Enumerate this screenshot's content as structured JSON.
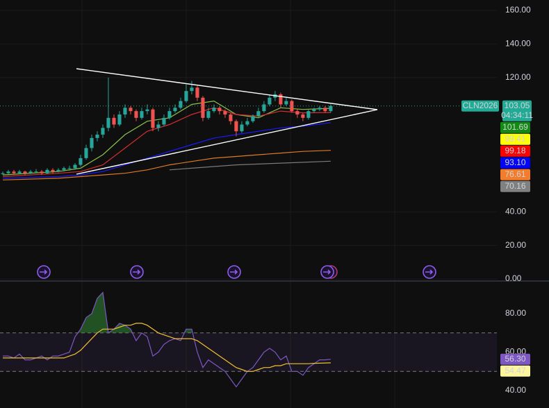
{
  "chart_data": [
    {
      "type": "candlestick",
      "symbol": "CLN2026",
      "countdown": "04:34:11",
      "last_price": 103.05,
      "last_price_color": "#22ab94",
      "up_color": "#26a69a",
      "down_color": "#ef5350",
      "xlim": [
        -0.5,
        88.9
      ],
      "ylim": [
        -0.8,
        166.2
      ],
      "yticks": [
        {
          "value": 160,
          "label": "160.00"
        },
        {
          "value": 140,
          "label": "140.00"
        },
        {
          "value": 120,
          "label": "120.00"
        },
        {
          "value": 40,
          "label": "40.00"
        },
        {
          "value": 20,
          "label": "20.00"
        },
        {
          "value": 0,
          "label": "0.00"
        }
      ],
      "grid": true,
      "ohlc": [
        [
          62.5,
          64,
          62,
          63
        ],
        [
          63,
          65,
          62.5,
          64
        ],
        [
          64,
          65,
          62,
          63
        ],
        [
          63,
          65,
          62.5,
          64
        ],
        [
          64,
          64.5,
          62,
          63
        ],
        [
          63,
          65,
          62.5,
          64
        ],
        [
          64,
          65.5,
          63,
          64
        ],
        [
          64,
          65,
          62,
          63
        ],
        [
          63,
          66,
          62.5,
          65
        ],
        [
          65,
          66,
          63,
          64
        ],
        [
          64,
          66,
          63.5,
          65
        ],
        [
          65,
          67,
          64,
          66
        ],
        [
          66,
          67.5,
          64.5,
          66
        ],
        [
          66,
          69,
          65,
          68
        ],
        [
          68,
          74,
          67,
          72
        ],
        [
          72,
          80,
          71,
          78
        ],
        [
          78,
          86,
          76,
          84
        ],
        [
          84,
          88,
          82,
          86
        ],
        [
          86,
          92,
          84,
          90
        ],
        [
          90,
          120,
          88,
          96
        ],
        [
          96,
          98,
          90,
          92
        ],
        [
          92,
          100,
          91,
          98
        ],
        [
          98,
          104,
          96,
          102
        ],
        [
          102,
          103,
          98,
          100
        ],
        [
          100,
          101,
          94,
          96
        ],
        [
          96,
          102,
          95,
          100
        ],
        [
          100,
          104,
          98,
          101
        ],
        [
          101,
          102,
          88,
          90
        ],
        [
          90,
          94,
          88,
          92
        ],
        [
          92,
          98,
          91,
          96
        ],
        [
          96,
          102,
          95,
          100
        ],
        [
          100,
          104,
          99,
          102
        ],
        [
          102,
          108,
          101,
          106
        ],
        [
          106,
          116,
          105,
          112
        ],
        [
          112,
          118,
          110,
          114
        ],
        [
          114,
          115,
          106,
          108
        ],
        [
          108,
          109,
          94,
          96
        ],
        [
          96,
          102,
          95,
          100
        ],
        [
          100,
          104,
          99,
          102
        ],
        [
          102,
          103,
          98,
          100
        ],
        [
          100,
          101,
          96,
          98
        ],
        [
          98,
          99,
          92,
          94
        ],
        [
          94,
          95,
          85,
          88
        ],
        [
          88,
          94,
          87,
          92
        ],
        [
          92,
          96,
          91,
          94
        ],
        [
          94,
          98,
          93,
          97
        ],
        [
          97,
          102,
          96,
          100
        ],
        [
          100,
          106,
          99,
          104
        ],
        [
          104,
          110,
          103,
          108
        ],
        [
          108,
          112,
          106,
          110
        ],
        [
          110,
          111,
          102,
          104
        ],
        [
          104,
          108,
          103,
          106
        ],
        [
          106,
          107,
          99,
          100
        ],
        [
          100,
          101,
          96,
          98
        ],
        [
          98,
          99,
          94,
          96
        ],
        [
          96,
          101,
          95,
          100
        ],
        [
          100,
          102,
          99,
          101
        ],
        [
          101,
          103,
          100,
          102
        ],
        [
          102,
          103,
          99,
          100
        ],
        [
          100,
          104,
          99,
          103.05
        ]
      ],
      "series": [
        {
          "color": "#8bc34a",
          "x": [
            0,
            10,
            14,
            18,
            22,
            26,
            30,
            34,
            38,
            42,
            46,
            50,
            54,
            59
          ],
          "values": [
            62,
            64,
            66,
            74,
            86,
            94,
            96,
            104,
            106,
            98,
            96,
            102,
            101,
            101.69
          ]
        },
        {
          "color": "#d32f2f",
          "x": [
            0,
            10,
            14,
            18,
            22,
            26,
            30,
            34,
            38,
            42,
            46,
            50,
            54,
            59
          ],
          "values": [
            61,
            63,
            64,
            68,
            78,
            88,
            92,
            98,
            102,
            98,
            97,
            100,
            99,
            99.18
          ]
        },
        {
          "color": "#1a1aff",
          "x": [
            0,
            10,
            14,
            18,
            22,
            26,
            30,
            34,
            38,
            42,
            46,
            50,
            54,
            59
          ],
          "values": [
            60,
            61,
            62,
            64,
            68,
            72,
            76,
            80,
            84,
            86,
            88,
            90,
            91,
            93.1
          ]
        },
        {
          "color": "#e07b24",
          "x": [
            0,
            10,
            14,
            18,
            22,
            26,
            30,
            34,
            38,
            42,
            46,
            50,
            54,
            59
          ],
          "values": [
            59,
            60,
            61,
            62,
            63,
            65,
            68,
            70,
            72,
            73,
            74,
            75,
            76,
            76.61
          ]
        },
        {
          "color": "#7a7a7a",
          "x": [
            0,
            10,
            14,
            18,
            22,
            26,
            30,
            34,
            38,
            42,
            46,
            50,
            54,
            59
          ],
          "values": [
            null,
            null,
            null,
            null,
            null,
            null,
            65,
            66,
            67,
            68,
            68.5,
            69,
            69.5,
            70.16
          ]
        }
      ],
      "price_tags": [
        {
          "value": 101.69,
          "label": "101.69",
          "color": "#138a13"
        },
        {
          "value": 99.41,
          "label": "99.41",
          "color": "#ffff00"
        },
        {
          "value": 99.18,
          "label": "99.18",
          "color": "#ff0000"
        },
        {
          "value": 93.1,
          "label": "93.10",
          "color": "#0000ff"
        },
        {
          "value": 76.61,
          "label": "76.61",
          "color": "#f57c2a"
        },
        {
          "value": 70.16,
          "label": "70.16",
          "color": "#808080"
        }
      ]
    },
    {
      "type": "line",
      "xlim": [
        -0.5,
        88.9
      ],
      "ylim": [
        31,
        96.6
      ],
      "yticks": [
        {
          "value": 80,
          "label": "80.00"
        },
        {
          "value": 60,
          "label": "60.00"
        },
        {
          "value": 40,
          "label": "40.00"
        }
      ],
      "levels": [
        70,
        50
      ],
      "band_color": "#7e57c2",
      "overbought_fill": "#2e7d32",
      "series": [
        {
          "color": "#7e57c2",
          "values": [
            58,
            58,
            57,
            59,
            56,
            56,
            57,
            58,
            56,
            58,
            58,
            59,
            60,
            68,
            72,
            78,
            80,
            88,
            91,
            70,
            72,
            75,
            74,
            72,
            66,
            70,
            68,
            58,
            60,
            64,
            66,
            67,
            66,
            72,
            72,
            60,
            52,
            56,
            54,
            52,
            50,
            46,
            42,
            46,
            50,
            52,
            56,
            60,
            62,
            60,
            56,
            58,
            50,
            50,
            48,
            52,
            54,
            56,
            56,
            56.3
          ]
        },
        {
          "color": "#f2c12e",
          "values": [
            57,
            57,
            57,
            57,
            57,
            57,
            57,
            57,
            57,
            57,
            57,
            57,
            58,
            59,
            61,
            64,
            67,
            70,
            72,
            72,
            72,
            73,
            74,
            74,
            75,
            75,
            74,
            72,
            70,
            69,
            68,
            67,
            67,
            67,
            67,
            66,
            64,
            62,
            60,
            58,
            56,
            54,
            52,
            51,
            50,
            50,
            51,
            52,
            52,
            53,
            53,
            54,
            54,
            54,
            54,
            54,
            54.2,
            54.3,
            54.4,
            54.47
          ]
        }
      ],
      "price_tags": [
        {
          "value": 56.3,
          "label": "56.30",
          "color": "#7e57c2"
        },
        {
          "value": 54.47,
          "label": "54.47",
          "color": "#fff59d"
        }
      ]
    }
  ]
}
